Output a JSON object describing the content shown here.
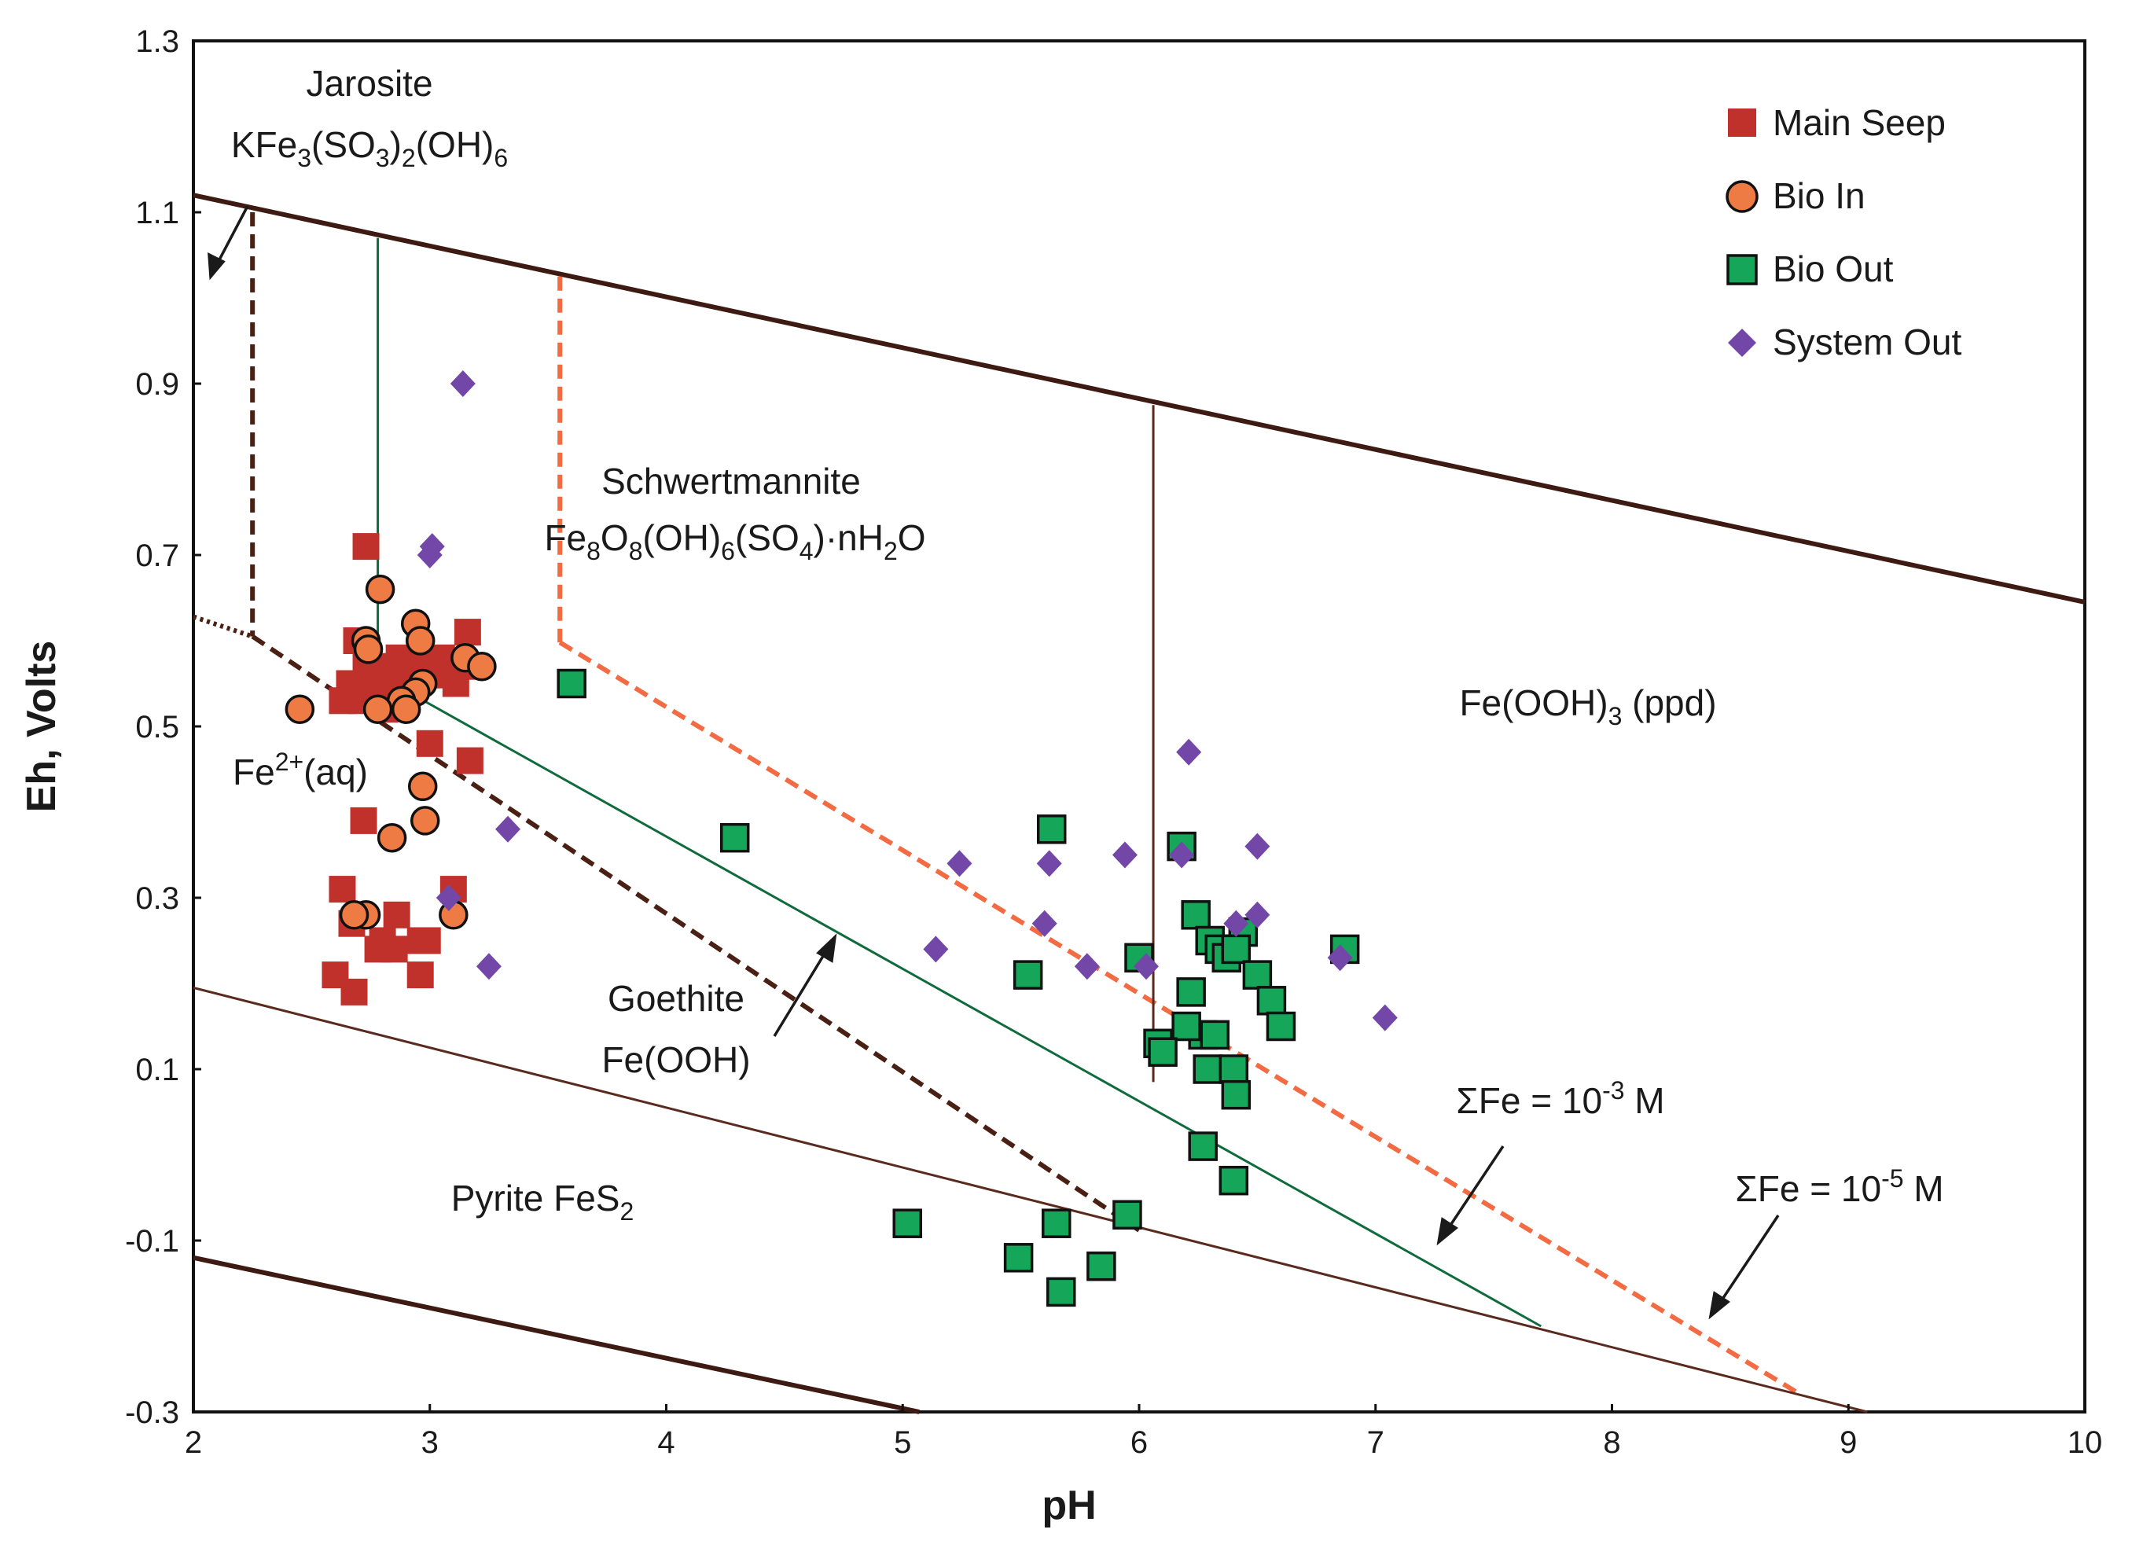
{
  "chart_data": {
    "type": "scatter",
    "title": "",
    "xlabel": "pH",
    "ylabel": "Eh, Volts",
    "xlim": [
      2,
      10
    ],
    "ylim": [
      -0.3,
      1.3
    ],
    "xticks": [
      "2",
      "3",
      "4",
      "5",
      "6",
      "7",
      "8",
      "9",
      "10"
    ],
    "yticks": [
      "1.3",
      "1.1",
      "0.9",
      "0.7",
      "0.5",
      "0.3",
      "0.1",
      "-0.1",
      "-0.3"
    ],
    "grid": false,
    "legend_position": "top-right",
    "series": [
      {
        "name": "Main Seep",
        "marker": "square",
        "color": "#C0312B",
        "points": [
          [
            2.73,
            0.71
          ],
          [
            2.69,
            0.6
          ],
          [
            2.73,
            0.57
          ],
          [
            2.66,
            0.55
          ],
          [
            2.71,
            0.53
          ],
          [
            2.63,
            0.53
          ],
          [
            2.76,
            0.55
          ],
          [
            2.84,
            0.57
          ],
          [
            2.87,
            0.58
          ],
          [
            2.93,
            0.57
          ],
          [
            2.98,
            0.56
          ],
          [
            3.01,
            0.57
          ],
          [
            3.05,
            0.58
          ],
          [
            3.08,
            0.56
          ],
          [
            3.11,
            0.55
          ],
          [
            3.16,
            0.61
          ],
          [
            3.19,
            0.57
          ],
          [
            2.81,
            0.52
          ],
          [
            2.86,
            0.55
          ],
          [
            3.0,
            0.48
          ],
          [
            3.17,
            0.46
          ],
          [
            2.72,
            0.39
          ],
          [
            2.63,
            0.31
          ],
          [
            3.1,
            0.31
          ],
          [
            2.67,
            0.27
          ],
          [
            2.8,
            0.25
          ],
          [
            2.86,
            0.28
          ],
          [
            2.78,
            0.24
          ],
          [
            2.85,
            0.24
          ],
          [
            2.96,
            0.25
          ],
          [
            2.99,
            0.25
          ],
          [
            2.96,
            0.21
          ],
          [
            2.6,
            0.21
          ],
          [
            2.68,
            0.19
          ]
        ]
      },
      {
        "name": "Bio In",
        "marker": "circle",
        "color": "#EE7B43",
        "points": [
          [
            2.45,
            0.52
          ],
          [
            2.79,
            0.66
          ],
          [
            2.73,
            0.6
          ],
          [
            2.74,
            0.59
          ],
          [
            2.94,
            0.62
          ],
          [
            2.96,
            0.6
          ],
          [
            3.15,
            0.58
          ],
          [
            3.22,
            0.57
          ],
          [
            2.97,
            0.55
          ],
          [
            2.94,
            0.54
          ],
          [
            2.88,
            0.53
          ],
          [
            2.78,
            0.52
          ],
          [
            2.9,
            0.52
          ],
          [
            2.97,
            0.43
          ],
          [
            2.98,
            0.39
          ],
          [
            2.84,
            0.37
          ],
          [
            2.73,
            0.28
          ],
          [
            2.68,
            0.28
          ],
          [
            3.1,
            0.28
          ]
        ]
      },
      {
        "name": "Bio Out",
        "marker": "square",
        "color": "#16A65A",
        "points": [
          [
            3.6,
            0.55
          ],
          [
            4.29,
            0.37
          ],
          [
            5.63,
            0.38
          ],
          [
            6.18,
            0.36
          ],
          [
            6.24,
            0.28
          ],
          [
            6.3,
            0.25
          ],
          [
            6.44,
            0.26
          ],
          [
            6.34,
            0.24
          ],
          [
            6.37,
            0.23
          ],
          [
            6.41,
            0.24
          ],
          [
            6.5,
            0.21
          ],
          [
            6.56,
            0.18
          ],
          [
            6.6,
            0.15
          ],
          [
            6.22,
            0.19
          ],
          [
            6.27,
            0.14
          ],
          [
            6.32,
            0.14
          ],
          [
            6.2,
            0.15
          ],
          [
            6.08,
            0.13
          ],
          [
            6.1,
            0.12
          ],
          [
            6.0,
            0.23
          ],
          [
            5.53,
            0.21
          ],
          [
            6.29,
            0.1
          ],
          [
            6.4,
            0.1
          ],
          [
            6.41,
            0.07
          ],
          [
            6.27,
            0.01
          ],
          [
            6.4,
            -0.03
          ],
          [
            6.87,
            0.24
          ],
          [
            5.02,
            -0.08
          ],
          [
            5.49,
            -0.12
          ],
          [
            5.65,
            -0.08
          ],
          [
            5.95,
            -0.07
          ],
          [
            5.67,
            -0.16
          ],
          [
            5.84,
            -0.13
          ]
        ]
      },
      {
        "name": "System Out",
        "marker": "diamond",
        "color": "#7347A8",
        "points": [
          [
            3.14,
            0.9
          ],
          [
            3.01,
            0.71
          ],
          [
            3.0,
            0.7
          ],
          [
            3.33,
            0.38
          ],
          [
            3.08,
            0.3
          ],
          [
            3.25,
            0.22
          ],
          [
            5.14,
            0.24
          ],
          [
            5.24,
            0.34
          ],
          [
            5.62,
            0.34
          ],
          [
            5.6,
            0.27
          ],
          [
            5.78,
            0.22
          ],
          [
            5.94,
            0.35
          ],
          [
            6.03,
            0.22
          ],
          [
            6.21,
            0.47
          ],
          [
            6.18,
            0.35
          ],
          [
            6.5,
            0.36
          ],
          [
            6.41,
            0.27
          ],
          [
            6.5,
            0.28
          ],
          [
            6.85,
            0.23
          ],
          [
            7.04,
            0.16
          ]
        ]
      }
    ],
    "boundaries": [
      {
        "name": "water-stability-upper",
        "style": "solid",
        "color": "#3D1A12",
        "points": [
          [
            2,
            1.12
          ],
          [
            10,
            0.645
          ]
        ]
      },
      {
        "name": "water-stability-lower",
        "style": "solid",
        "color": "#3D1A12",
        "points": [
          [
            2,
            -0.12
          ],
          [
            5.07,
            -0.3
          ]
        ]
      },
      {
        "name": "jarosite-vertical",
        "style": "dashed",
        "color": "#4A2014",
        "points": [
          [
            2.25,
            1.1
          ],
          [
            2.25,
            0.605
          ]
        ]
      },
      {
        "name": "jarosite-dotted",
        "style": "dotted",
        "color": "#4A2014",
        "points": [
          [
            2.0,
            0.628
          ],
          [
            2.25,
            0.605
          ]
        ]
      },
      {
        "name": "jarosite-goethite-boundary",
        "style": "dashed",
        "color": "#4A2014",
        "points": [
          [
            2.25,
            0.605
          ],
          [
            6.0,
            -0.088
          ]
        ]
      },
      {
        "name": "fe-1e-3-vertical",
        "style": "solid",
        "color": "#0F6B3C",
        "points": [
          [
            2.78,
            1.07
          ],
          [
            2.78,
            0.56
          ]
        ]
      },
      {
        "name": "fe-1e-3-boundary",
        "style": "solid",
        "color": "#0F6B3C",
        "points": [
          [
            2.78,
            0.56
          ],
          [
            7.7,
            -0.2
          ]
        ]
      },
      {
        "name": "fe-1e-5-vertical",
        "style": "dashed",
        "color": "#F26B43",
        "points": [
          [
            3.55,
            1.025
          ],
          [
            3.55,
            0.598
          ]
        ]
      },
      {
        "name": "fe-1e-5-boundary",
        "style": "dashed",
        "color": "#F26B43",
        "points": [
          [
            3.55,
            0.598
          ],
          [
            8.8,
            -0.28
          ]
        ]
      },
      {
        "name": "schwertmannite-feooh3-boundary",
        "style": "solid",
        "color": "#5A2A1E",
        "points": [
          [
            6.06,
            0.875
          ],
          [
            6.06,
            0.085
          ]
        ]
      },
      {
        "name": "pyrite-boundary",
        "style": "solid",
        "color": "#5A2A1E",
        "points": [
          [
            2,
            0.195
          ],
          [
            9.08,
            -0.3
          ]
        ]
      }
    ],
    "labels": {
      "jarosite_name": "Jarosite",
      "jarosite_formula": "KFe3(SO3)2(OH)6",
      "schwertmannite_name": "Schwertmannite",
      "schwertmannite_formula": "Fe8O8(OH)6(SO4)·nH2O",
      "feooh3": "Fe(OOH)3 (ppd)",
      "fe2aq": "Fe2+(aq)",
      "goethite_name": "Goethite",
      "goethite_formula": "Fe(OOH)",
      "pyrite": "Pyrite FeS2",
      "sum_fe_1e3": "ΣFe = 10-3 M",
      "sum_fe_1e5": "ΣFe = 10-5 M"
    }
  }
}
